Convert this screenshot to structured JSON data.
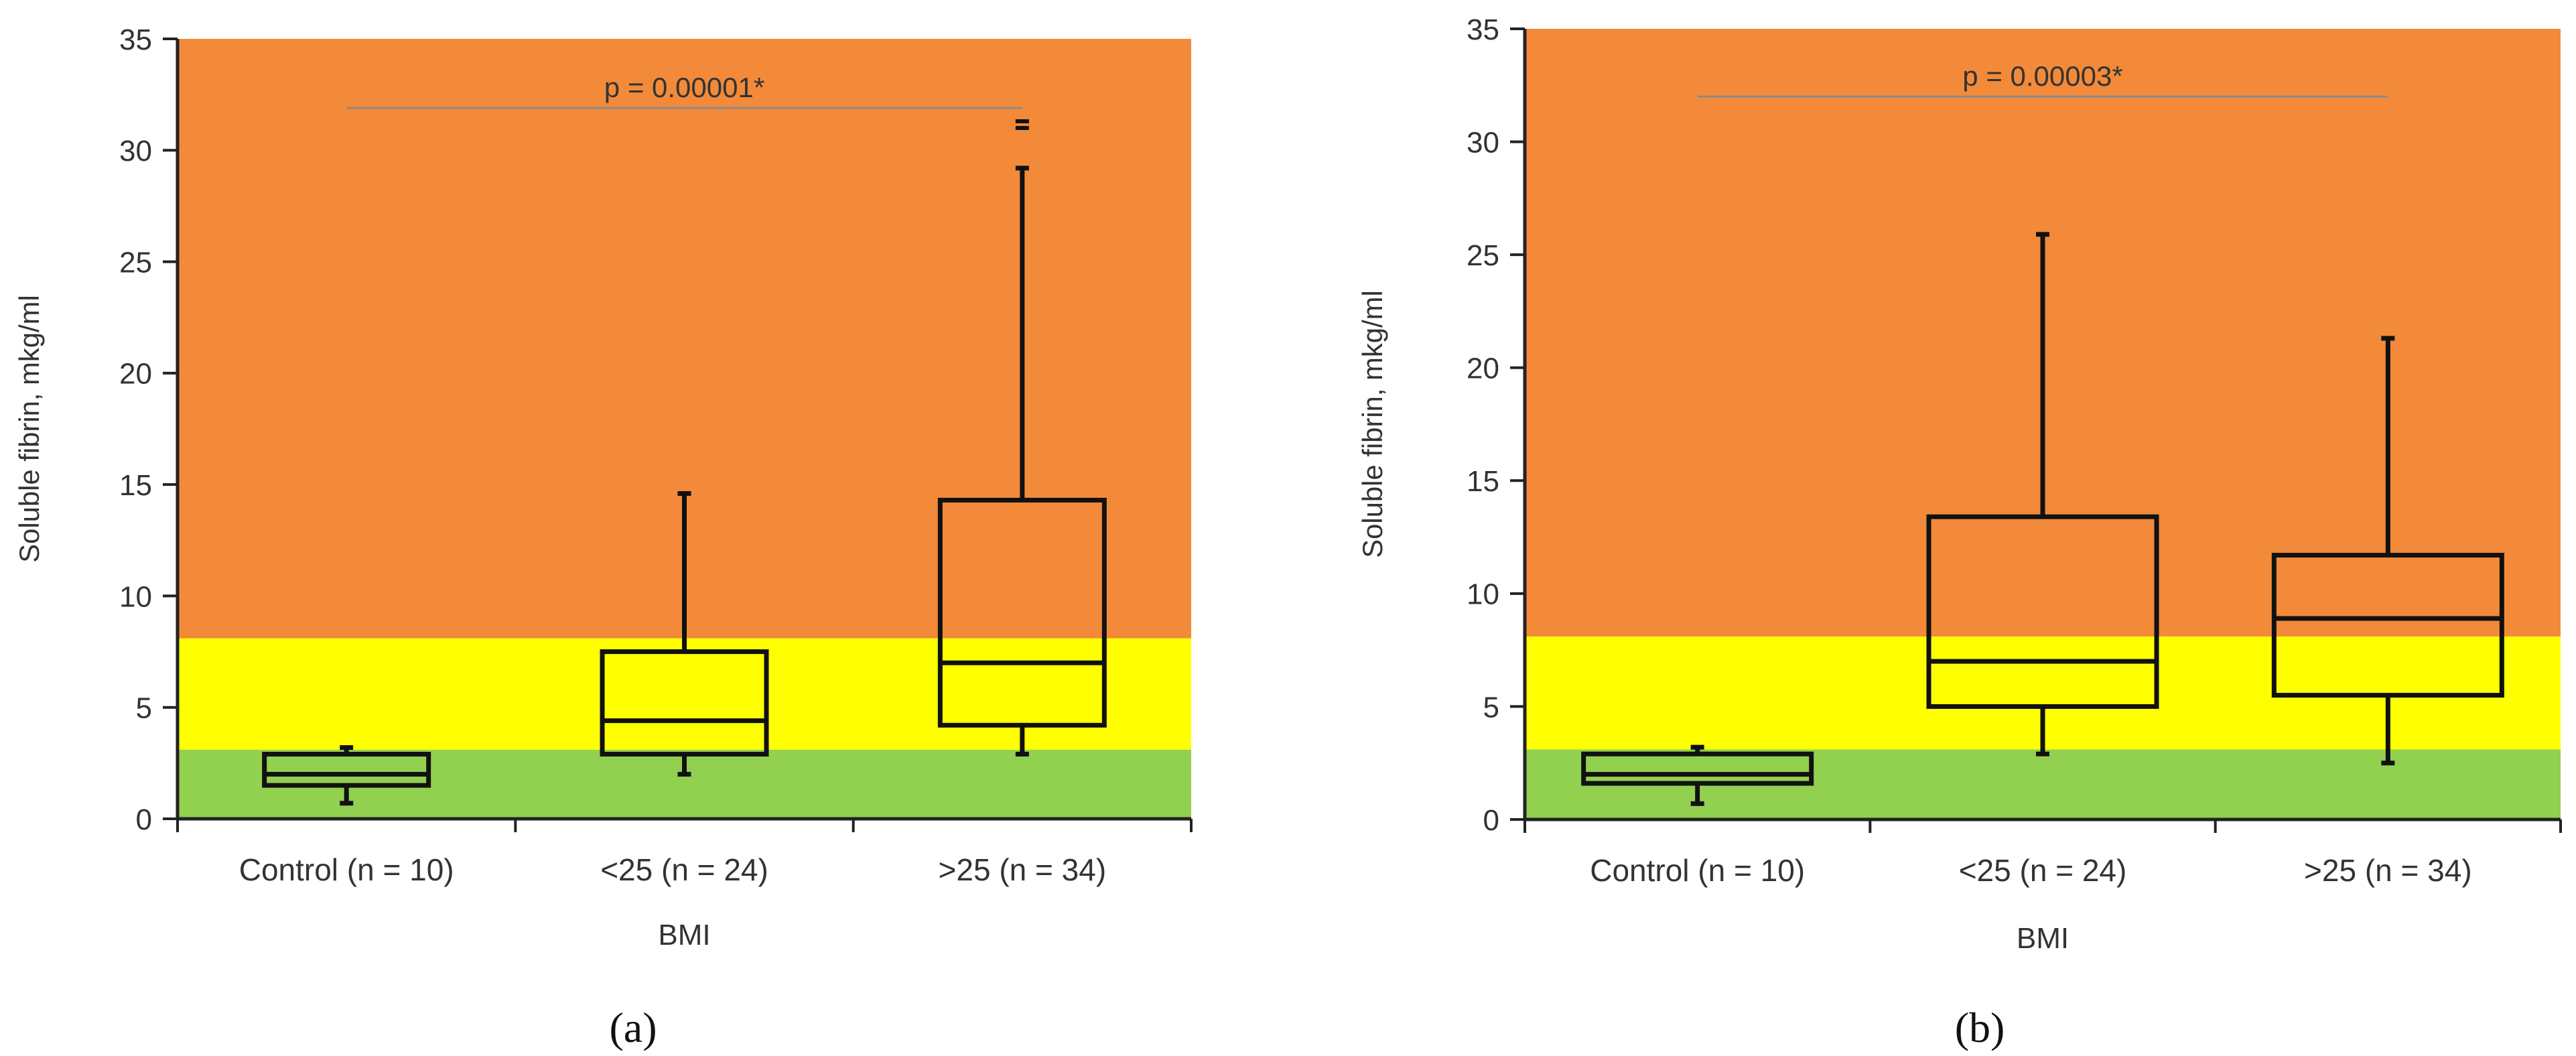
{
  "chart_data": [
    {
      "panel_label": "(a)",
      "type": "box",
      "ylabel": "Soluble fibrin, mkg/ml",
      "xlabel": "BMI",
      "ylim": [
        0,
        35
      ],
      "yticks": [
        "0",
        "5",
        "10",
        "15",
        "20",
        "25",
        "30",
        "35"
      ],
      "bands": [
        {
          "from": 0,
          "to": 3.1,
          "color": "#92d050"
        },
        {
          "from": 3.1,
          "to": 8.1,
          "color": "#ffff00"
        },
        {
          "from": 8.1,
          "to": 35,
          "color": "#f28a3a"
        }
      ],
      "categories": [
        "Control (n = 10)",
        "<25 (n = 24)",
        ">25 (n = 34)"
      ],
      "boxes": [
        {
          "min": 0.7,
          "q1": 1.5,
          "median": 2.0,
          "q3": 2.9,
          "max": 3.2
        },
        {
          "min": 2.0,
          "q1": 2.9,
          "median": 4.4,
          "q3": 7.5,
          "max": 14.6
        },
        {
          "min": 2.9,
          "q1": 4.2,
          "median": 7.0,
          "q3": 14.3,
          "max": 29.2,
          "outliers": [
            31.0,
            31.3
          ]
        }
      ],
      "annotation": {
        "text": "p = 0.00001*",
        "y": 31.9,
        "from_category": 0,
        "to_category": 2
      }
    },
    {
      "panel_label": "(b)",
      "type": "box",
      "ylabel": "Soluble fibrin, mkg/ml",
      "xlabel": "BMI",
      "ylim": [
        0,
        35
      ],
      "yticks": [
        "0",
        "5",
        "10",
        "15",
        "20",
        "25",
        "30",
        "35"
      ],
      "bands": [
        {
          "from": 0,
          "to": 3.1,
          "color": "#92d050"
        },
        {
          "from": 3.1,
          "to": 8.1,
          "color": "#ffff00"
        },
        {
          "from": 8.1,
          "to": 35,
          "color": "#f28a3a"
        }
      ],
      "categories": [
        "Control (n = 10)",
        "<25 (n = 24)",
        ">25 (n = 34)"
      ],
      "boxes": [
        {
          "min": 0.7,
          "q1": 1.6,
          "median": 2.0,
          "q3": 2.9,
          "max": 3.2
        },
        {
          "min": 2.9,
          "q1": 5.0,
          "median": 7.0,
          "q3": 13.4,
          "max": 25.9
        },
        {
          "min": 2.5,
          "q1": 5.5,
          "median": 8.9,
          "q3": 11.7,
          "max": 21.3
        }
      ],
      "annotation": {
        "text": "p = 0.00003*",
        "y": 32.0,
        "from_category": 0,
        "to_category": 2
      }
    }
  ]
}
